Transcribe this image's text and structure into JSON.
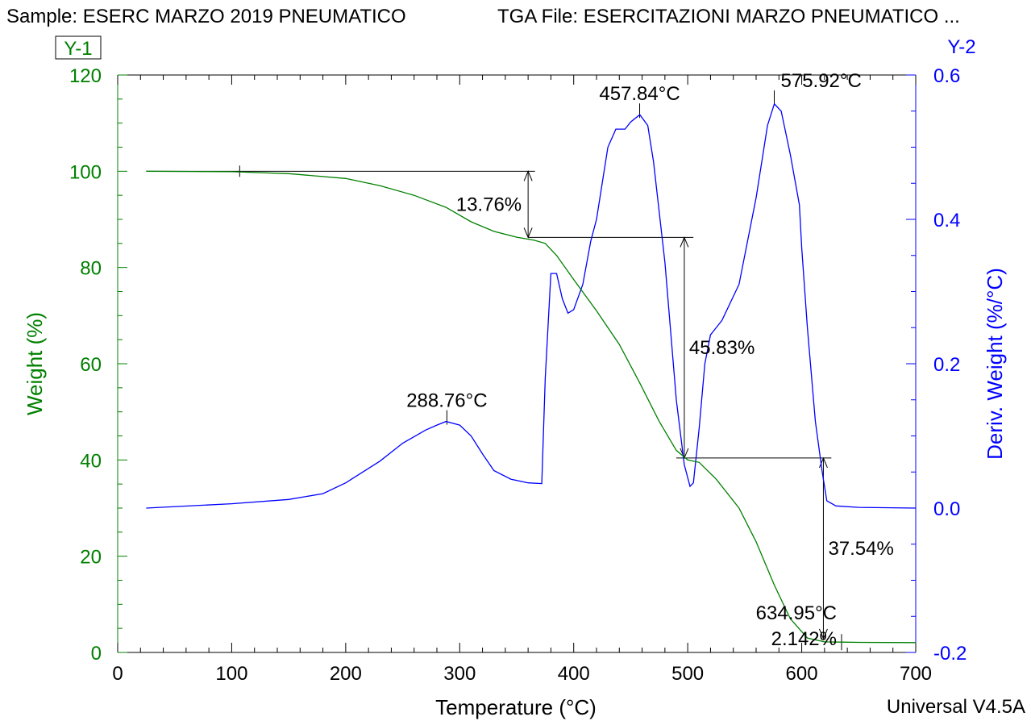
{
  "header": {
    "sample": "Sample: ESERC MARZO 2019 PNEUMATICO",
    "file": "TGA File: ESERCITAZIONI MARZO PNEUMATICO ..."
  },
  "footer": {
    "version": "Universal V4.5A"
  },
  "chart_data": {
    "type": "line",
    "x_label": "Temperature (°C)",
    "y1_label": "Weight (%)",
    "y2_label": "Deriv. Weight (%/°C)",
    "y1_tag": "Y-1",
    "y2_tag": "Y-2",
    "xlim": [
      0,
      700
    ],
    "y1lim": [
      0,
      120
    ],
    "y2lim": [
      -0.2,
      0.6
    ],
    "x_ticks": [
      "0",
      "100",
      "200",
      "300",
      "400",
      "500",
      "600",
      "700"
    ],
    "y1_ticks": [
      "0",
      "20",
      "40",
      "60",
      "80",
      "100",
      "120"
    ],
    "y2_ticks": [
      "-0.2",
      "0.0",
      "0.2",
      "0.4",
      "0.6"
    ],
    "colors": {
      "weight": "#008000",
      "deriv": "#0000ff",
      "annotation": "#000000"
    },
    "series": [
      {
        "name": "Weight",
        "axis": "y1",
        "x": [
          25,
          100,
          150,
          200,
          230,
          260,
          288,
          310,
          330,
          350,
          365,
          375,
          385,
          400,
          420,
          440,
          458,
          475,
          490,
          500,
          510,
          525,
          545,
          560,
          576,
          590,
          605,
          620,
          634.95,
          650,
          700
        ],
        "y": [
          100,
          99.9,
          99.5,
          98.5,
          97,
          95,
          92.5,
          89.5,
          87.5,
          86.3,
          85.7,
          85,
          82.5,
          77.5,
          71,
          64,
          56,
          48,
          42,
          40,
          39.5,
          36,
          30,
          23,
          14,
          7,
          3,
          2.2,
          2.142,
          2.1,
          2.05
        ]
      },
      {
        "name": "Deriv. Weight",
        "axis": "y2",
        "x": [
          25,
          100,
          150,
          180,
          200,
          230,
          250,
          270,
          280,
          288,
          300,
          310,
          320,
          330,
          345,
          360,
          372,
          375,
          380,
          385,
          390,
          395,
          400,
          408,
          415,
          420,
          430,
          437,
          445,
          450,
          458,
          465,
          470,
          480,
          490,
          497,
          502,
          505,
          510,
          515,
          520,
          530,
          545,
          560,
          570,
          576,
          582,
          590,
          598,
          600,
          605,
          612,
          618,
          622,
          630,
          650,
          700
        ],
        "y": [
          0.0,
          0.006,
          0.012,
          0.02,
          0.035,
          0.065,
          0.09,
          0.108,
          0.115,
          0.12,
          0.115,
          0.1,
          0.075,
          0.052,
          0.04,
          0.035,
          0.034,
          0.18,
          0.325,
          0.325,
          0.29,
          0.27,
          0.275,
          0.31,
          0.37,
          0.4,
          0.5,
          0.525,
          0.525,
          0.535,
          0.545,
          0.53,
          0.48,
          0.34,
          0.15,
          0.06,
          0.03,
          0.035,
          0.11,
          0.2,
          0.24,
          0.26,
          0.31,
          0.43,
          0.53,
          0.56,
          0.55,
          0.49,
          0.42,
          0.36,
          0.25,
          0.12,
          0.05,
          0.01,
          0.003,
          0.001,
          0.0
        ]
      }
    ],
    "annotations": {
      "peaks": [
        {
          "label": "288.76°C",
          "x": 288.76,
          "y2": 0.12
        },
        {
          "label": "457.84°C",
          "x": 457.84,
          "y2": 0.545
        },
        {
          "label": "575.92°C",
          "x": 575.92,
          "y2": 0.563
        }
      ],
      "steps": [
        {
          "label": "13.76%",
          "x": 360,
          "from": 100,
          "to": 86.24,
          "line_from": 25,
          "line_to": 366
        },
        {
          "label": "45.83%",
          "x": 497,
          "from": 86.24,
          "to": 40.41,
          "line_from": 360,
          "line_to": 505
        },
        {
          "label": "37.54%",
          "x": 619,
          "from": 40.41,
          "to": 2.87,
          "line_from": 490,
          "line_to": 626
        }
      ],
      "residue": {
        "temp_label": "634.95°C",
        "value_label": "2.142%",
        "x": 634.95,
        "y1": 2.142
      }
    }
  }
}
